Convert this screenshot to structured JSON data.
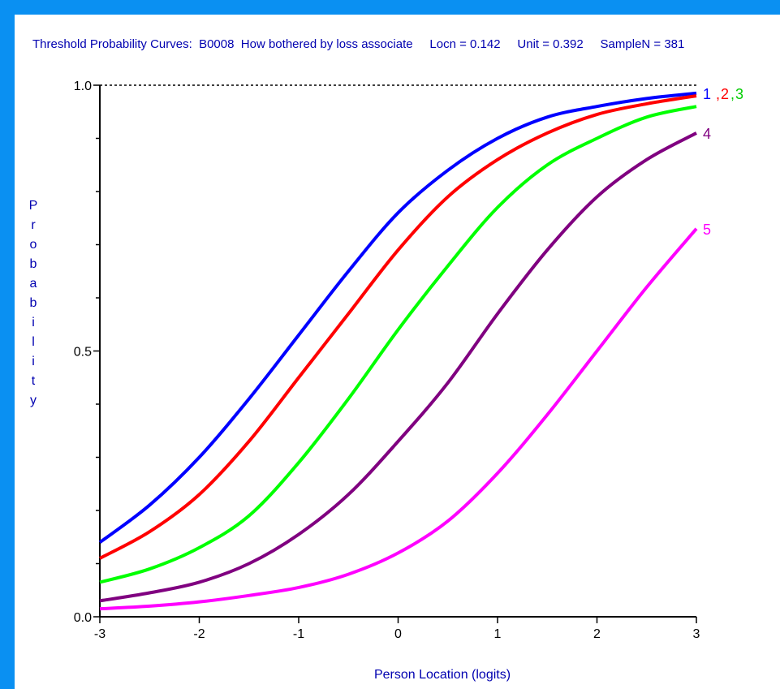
{
  "chart_data": {
    "type": "line",
    "title": "Threshold Probability Curves:  B0008  How bothered by loss associate     Locn = 0.142     Unit = 0.392     SampleN = 381",
    "xlabel": "Person Location (logits)",
    "ylabel": "Probability",
    "xlim": [
      -3,
      3
    ],
    "ylim": [
      0,
      1
    ],
    "x_ticks": [
      "-3",
      "-2",
      "-1",
      "0",
      "1",
      "2",
      "3"
    ],
    "y_ticks": [
      "0.0",
      "0.5",
      "1.0"
    ],
    "reference_line": 1.0,
    "grid": false,
    "series": [
      {
        "name": "1",
        "color": "#0000ff",
        "x": [
          -3,
          -2.5,
          -2,
          -1.5,
          -1,
          -0.5,
          0,
          0.5,
          1,
          1.5,
          2,
          2.5,
          3
        ],
        "y": [
          0.14,
          0.21,
          0.3,
          0.41,
          0.53,
          0.65,
          0.76,
          0.84,
          0.9,
          0.94,
          0.96,
          0.975,
          0.985
        ]
      },
      {
        "name": "2",
        "color": "#ff0000",
        "x": [
          -3,
          -2.5,
          -2,
          -1.5,
          -1,
          -0.5,
          0,
          0.5,
          1,
          1.5,
          2,
          2.5,
          3
        ],
        "y": [
          0.11,
          0.16,
          0.23,
          0.33,
          0.45,
          0.57,
          0.69,
          0.79,
          0.86,
          0.91,
          0.945,
          0.965,
          0.98
        ]
      },
      {
        "name": "3",
        "color": "#00ff00",
        "x": [
          -3,
          -2.5,
          -2,
          -1.5,
          -1,
          -0.5,
          0,
          0.5,
          1,
          1.5,
          2,
          2.5,
          3
        ],
        "y": [
          0.065,
          0.09,
          0.13,
          0.19,
          0.29,
          0.41,
          0.54,
          0.66,
          0.77,
          0.85,
          0.9,
          0.94,
          0.96
        ]
      },
      {
        "name": "4",
        "color": "#800080",
        "x": [
          -3,
          -2.5,
          -2,
          -1.5,
          -1,
          -0.5,
          0,
          0.5,
          1,
          1.5,
          2,
          2.5,
          3
        ],
        "y": [
          0.03,
          0.045,
          0.065,
          0.1,
          0.155,
          0.23,
          0.33,
          0.44,
          0.57,
          0.69,
          0.79,
          0.86,
          0.91
        ]
      },
      {
        "name": "5",
        "color": "#ff00ff",
        "x": [
          -3,
          -2.5,
          -2,
          -1.5,
          -1,
          -0.5,
          0,
          0.5,
          1,
          1.5,
          2,
          2.5,
          3
        ],
        "y": [
          0.015,
          0.02,
          0.028,
          0.04,
          0.055,
          0.08,
          0.12,
          0.18,
          0.27,
          0.38,
          0.5,
          0.62,
          0.73
        ]
      }
    ],
    "curve_labels": [
      {
        "text": "1",
        "color": "#0000ff",
        "y": 0.985
      },
      {
        "text": ",",
        "color": "#ff0000",
        "y": 0.985
      },
      {
        "text": "2",
        "color": "#ff0000",
        "y": 0.985
      },
      {
        "text": ",",
        "color": "#00cc00",
        "y": 0.985
      },
      {
        "text": "3",
        "color": "#00cc00",
        "y": 0.985
      },
      {
        "text": "4",
        "color": "#800080",
        "y": 0.91
      },
      {
        "text": "5",
        "color": "#ff00ff",
        "y": 0.73
      }
    ]
  },
  "colors": {
    "frame": "#0a90f2",
    "text_blue": "#0000b0"
  }
}
